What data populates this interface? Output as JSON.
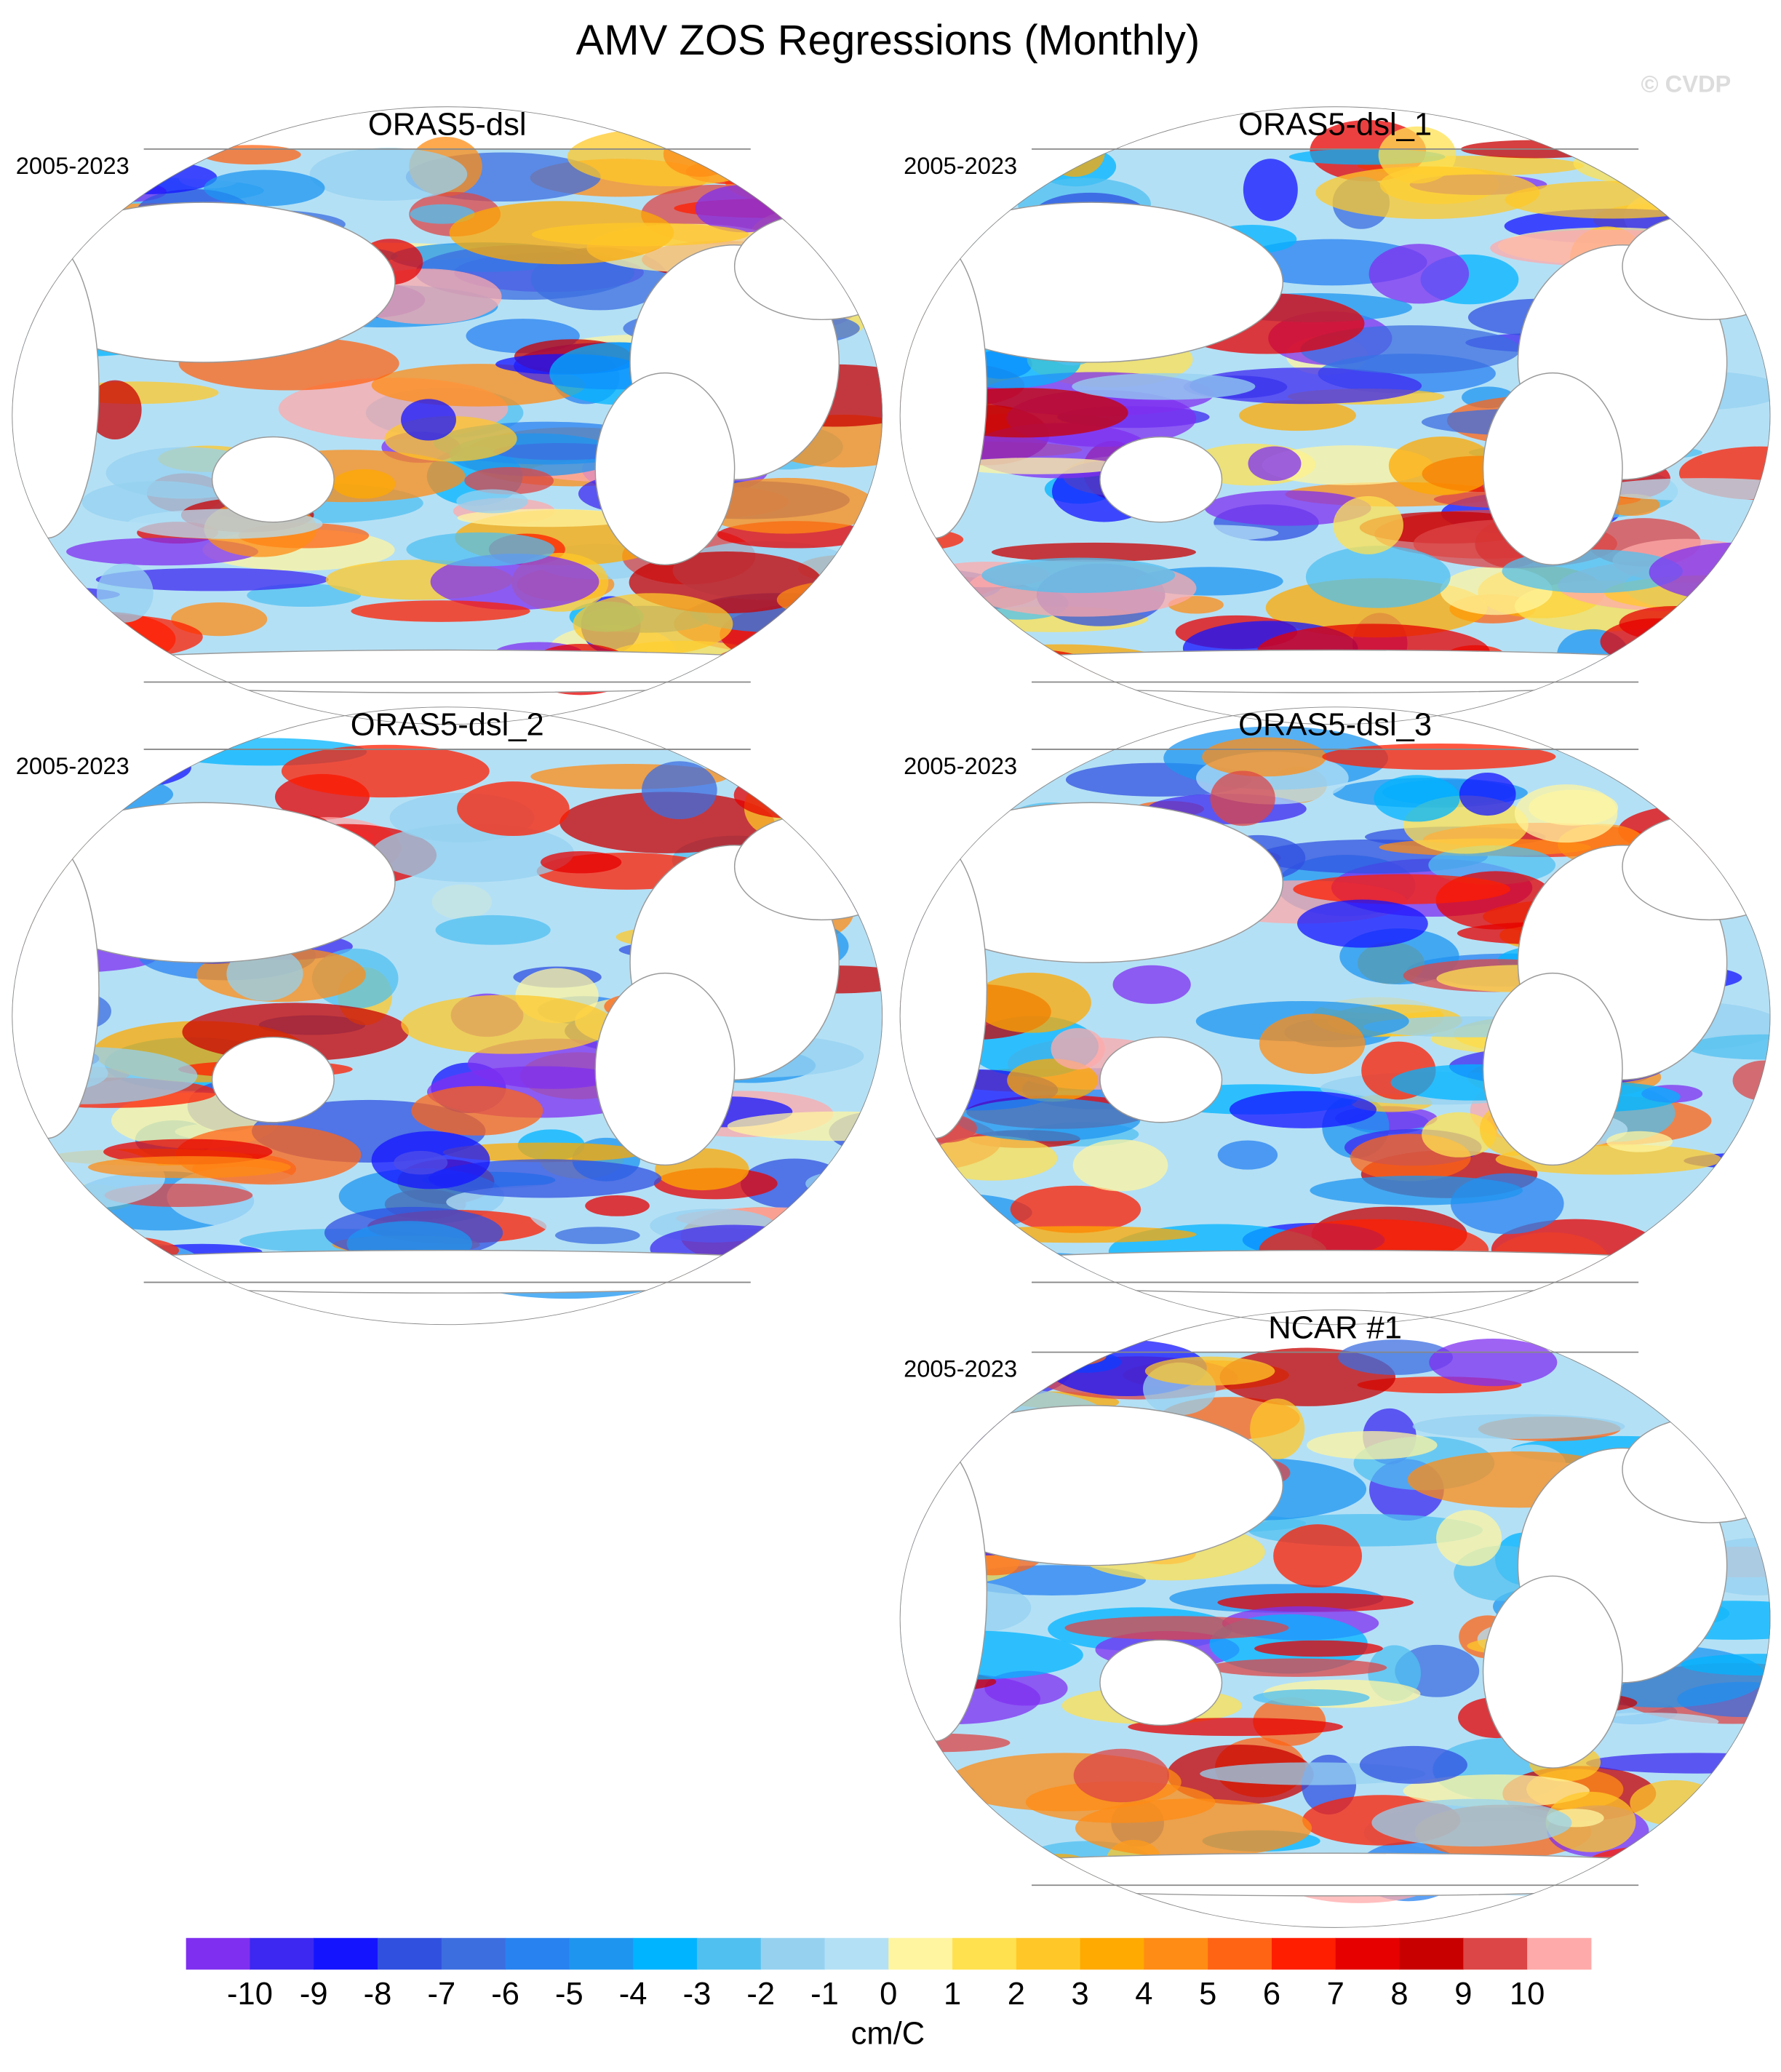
{
  "title": "AMV ZOS Regressions (Monthly)",
  "watermark": "© CVDP",
  "panels": [
    {
      "title": "ORAS5-dsl",
      "period": "2005-2023"
    },
    {
      "title": "ORAS5-dsl_1",
      "period": "2005-2023"
    },
    {
      "title": "ORAS5-dsl_2",
      "period": "2005-2023"
    },
    {
      "title": "ORAS5-dsl_3",
      "period": "2005-2023"
    },
    {
      "title": "NCAR #1",
      "period": "2005-2023"
    }
  ],
  "colorbar": {
    "label": "cm/C",
    "levels": [
      -10,
      -9,
      -8,
      -7,
      -6,
      -5,
      -4,
      -3,
      -2,
      -1,
      0,
      1,
      2,
      3,
      4,
      5,
      6,
      7,
      8,
      9,
      10
    ],
    "colors": [
      "#7f2ff0",
      "#3c28f0",
      "#1414ff",
      "#3050e0",
      "#3c6ee0",
      "#2882f0",
      "#1e96f0",
      "#00b4ff",
      "#50c0f0",
      "#96d2f0",
      "#b4e0f5",
      "#fff5a0",
      "#ffe150",
      "#ffc828",
      "#ffaa00",
      "#ff8c14",
      "#ff6414",
      "#ff1e00",
      "#e60000",
      "#c80000",
      "#dc4646",
      "#ffaaaa"
    ]
  }
}
